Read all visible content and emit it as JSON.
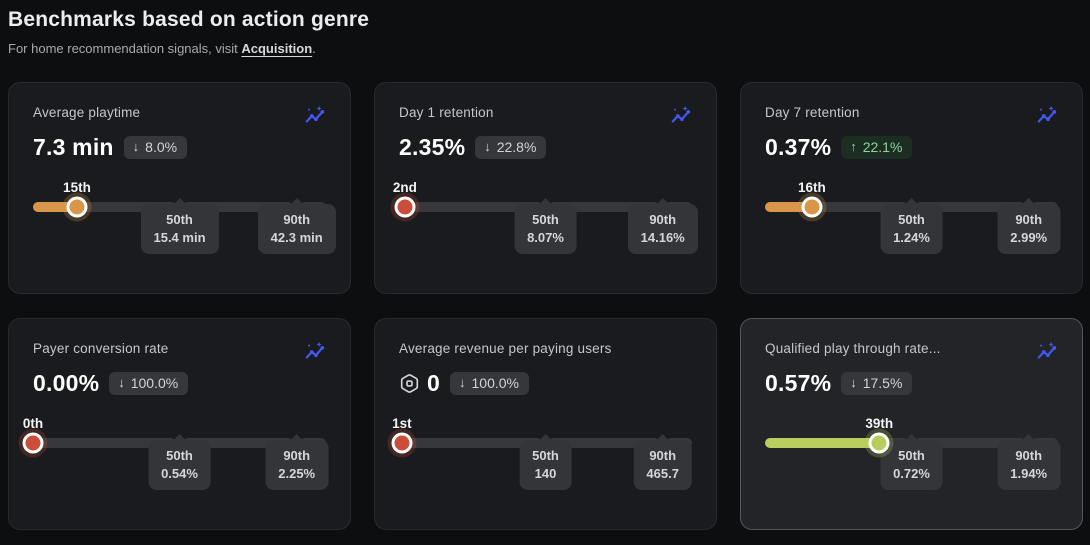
{
  "page": {
    "title": "Benchmarks based on action genre",
    "subtitle_prefix": "For home recommendation signals, visit ",
    "subtitle_link": "Acquisition",
    "subtitle_suffix": "."
  },
  "colors": {
    "accent_orange": "#d9964a",
    "accent_red": "#cb4e3b",
    "accent_lime": "#b9cd5f",
    "trend_icon_blue": "#4357f2",
    "badge_up_bg": "#1c2e22",
    "badge_up_text": "#90d2a1"
  },
  "cards": [
    {
      "title": "Average playtime",
      "value": "7.3 min",
      "badge": {
        "arrow": "↓",
        "direction": "down",
        "label": "8.0%"
      },
      "percentile": 15,
      "percentile_label": "15th",
      "accent": "#d9964a",
      "selected": false,
      "has_trend_icon": true,
      "p50": {
        "label": "50th",
        "value": "15.4 min"
      },
      "p90": {
        "label": "90th",
        "value": "42.3 min"
      }
    },
    {
      "title": "Day 1 retention",
      "value": "2.35%",
      "badge": {
        "arrow": "↓",
        "direction": "down",
        "label": "22.8%"
      },
      "percentile": 2,
      "percentile_label": "2nd",
      "accent": "#cb4e3b",
      "selected": false,
      "has_trend_icon": true,
      "p50": {
        "label": "50th",
        "value": "8.07%"
      },
      "p90": {
        "label": "90th",
        "value": "14.16%"
      }
    },
    {
      "title": "Day 7 retention",
      "value": "0.37%",
      "badge": {
        "arrow": "↑",
        "direction": "up",
        "label": "22.1%"
      },
      "percentile": 16,
      "percentile_label": "16th",
      "accent": "#d9964a",
      "selected": false,
      "has_trend_icon": true,
      "p50": {
        "label": "50th",
        "value": "1.24%"
      },
      "p90": {
        "label": "90th",
        "value": "2.99%"
      }
    },
    {
      "title": "Payer conversion rate",
      "value": "0.00%",
      "badge": {
        "arrow": "↓",
        "direction": "down",
        "label": "100.0%"
      },
      "percentile": 0,
      "percentile_label": "0th",
      "accent": "#cb4e3b",
      "selected": false,
      "has_trend_icon": true,
      "p50": {
        "label": "50th",
        "value": "0.54%"
      },
      "p90": {
        "label": "90th",
        "value": "2.25%"
      }
    },
    {
      "title": "Average revenue per paying users",
      "value": "0",
      "value_icon": "robux",
      "badge": {
        "arrow": "↓",
        "direction": "down",
        "label": "100.0%"
      },
      "percentile": 1,
      "percentile_label": "1st",
      "accent": "#cb4e3b",
      "selected": false,
      "has_trend_icon": false,
      "p50": {
        "label": "50th",
        "value": "140"
      },
      "p90": {
        "label": "90th",
        "value": "465.7"
      }
    },
    {
      "title": "Qualified play through rate...",
      "value": "0.57%",
      "badge": {
        "arrow": "↓",
        "direction": "down",
        "label": "17.5%"
      },
      "percentile": 39,
      "percentile_label": "39th",
      "accent": "#b9cd5f",
      "selected": true,
      "has_trend_icon": true,
      "p50": {
        "label": "50th",
        "value": "0.72%"
      },
      "p90": {
        "label": "90th",
        "value": "1.94%"
      }
    }
  ]
}
